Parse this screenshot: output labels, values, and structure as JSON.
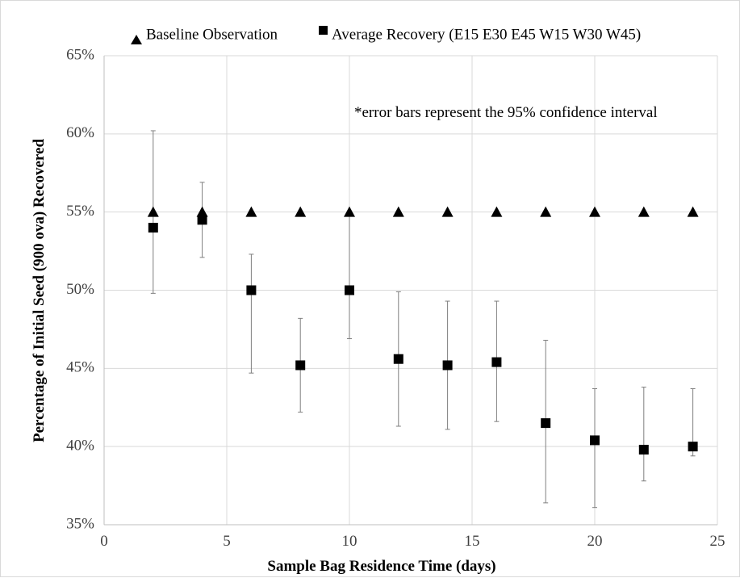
{
  "chart_data": {
    "type": "scatter",
    "title": "",
    "xlabel": "Sample Bag Residence Time (days)",
    "ylabel": "Percentage of Initial Seed (900 ova) Recovered",
    "xlim": [
      0,
      25
    ],
    "ylim": [
      35,
      65
    ],
    "xticks": [
      0,
      5,
      10,
      15,
      20,
      25
    ],
    "yticks": [
      35,
      40,
      45,
      50,
      55,
      60,
      65
    ],
    "xtick_labels": [
      "0",
      "5",
      "10",
      "15",
      "20",
      "25"
    ],
    "ytick_labels": [
      "35%",
      "40%",
      "45%",
      "50%",
      "55%",
      "60%",
      "65%"
    ],
    "grid": true,
    "legend_position": "top",
    "annotation": "*error bars represent the 95% confidence interval",
    "series": [
      {
        "name": "Baseline Observation",
        "marker": "triangle",
        "color": "#000000",
        "x": [
          2,
          4,
          6,
          8,
          10,
          12,
          14,
          16,
          18,
          20,
          22,
          24
        ],
        "y": [
          55,
          55,
          55,
          55,
          55,
          55,
          55,
          55,
          55,
          55,
          55,
          55
        ]
      },
      {
        "name": "Average Recovery (E15 E30 E45 W15 W30 W45)",
        "marker": "square",
        "color": "#000000",
        "x": [
          2,
          4,
          6,
          8,
          10,
          12,
          14,
          16,
          18,
          20,
          22,
          24
        ],
        "y": [
          54.0,
          54.5,
          50.0,
          45.2,
          50.0,
          45.6,
          45.2,
          45.4,
          41.5,
          40.4,
          39.8,
          40.0
        ],
        "err_upper": [
          60.2,
          56.9,
          52.3,
          48.2,
          55.0,
          49.9,
          49.3,
          49.3,
          46.8,
          43.7,
          43.8,
          43.7
        ],
        "err_lower": [
          49.8,
          52.1,
          44.7,
          42.2,
          46.9,
          41.3,
          41.1,
          41.6,
          36.4,
          36.1,
          37.8,
          39.4
        ]
      }
    ]
  }
}
